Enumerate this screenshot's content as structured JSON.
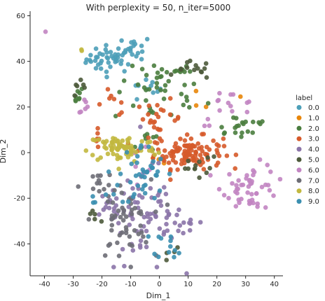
{
  "chart_data": {
    "type": "scatter",
    "title": "With perplexity = 50, n_iter=5000",
    "xlabel": "Dim_1",
    "ylabel": "Dim_2",
    "xlim": [
      -45,
      43
    ],
    "ylim": [
      -54,
      62
    ],
    "xticks": [
      -40,
      -30,
      -20,
      -10,
      0,
      10,
      20,
      30,
      40
    ],
    "yticks": [
      -40,
      -20,
      0,
      20,
      40,
      60
    ],
    "grid": false,
    "legend_position": "right",
    "legend_title": "label",
    "series": [
      {
        "name": "0.0",
        "color": "#4c9fb8",
        "clusters": [
          [
            -17,
            41,
            4.2,
            3.0,
            45
          ],
          [
            -8,
            46,
            2.5,
            2.5,
            15
          ],
          [
            -5,
            27,
            3,
            3,
            10
          ]
        ]
      },
      {
        "name": "1.0",
        "color": "#e8860a",
        "clusters": [
          [
            14,
            22,
            2,
            2,
            3
          ],
          [
            28,
            24,
            1,
            1,
            1
          ],
          [
            0,
            -2,
            2,
            2,
            3
          ]
        ]
      },
      {
        "name": "2.0",
        "color": "#4a7d3e",
        "clusters": [
          [
            0,
            25,
            8,
            6,
            35
          ],
          [
            5,
            36,
            3,
            2,
            12
          ],
          [
            -30,
            25,
            2,
            2,
            8
          ],
          [
            28,
            12,
            6,
            3,
            20
          ],
          [
            -2,
            5,
            3,
            3,
            8
          ]
        ]
      },
      {
        "name": "3.0",
        "color": "#d65a2a",
        "clusters": [
          [
            10,
            0,
            6,
            3.5,
            110
          ],
          [
            0,
            15,
            4,
            4,
            25
          ],
          [
            -16,
            22,
            3,
            3,
            8
          ],
          [
            -22,
            6,
            2,
            2,
            6
          ]
        ]
      },
      {
        "name": "4.0",
        "color": "#8b74a8",
        "clusters": [
          [
            -4,
            -28,
            6,
            12,
            60
          ],
          [
            -15,
            -25,
            5,
            4,
            25
          ],
          [
            8,
            -33,
            4,
            3,
            12
          ]
        ]
      },
      {
        "name": "5.0",
        "color": "#4d5a3b",
        "clusters": [
          [
            12,
            36,
            3,
            2,
            14
          ],
          [
            13,
            -6,
            4,
            3,
            12
          ],
          [
            -28,
            27,
            2,
            2,
            6
          ],
          [
            -22,
            -28,
            2,
            2,
            5
          ],
          [
            7,
            -42,
            2,
            2,
            4
          ]
        ]
      },
      {
        "name": "6.0",
        "color": "#c285c2",
        "clusters": [
          [
            32,
            -15,
            5,
            5,
            50
          ],
          [
            24,
            20,
            5,
            4,
            15
          ],
          [
            -27,
            20,
            3,
            2,
            6
          ],
          [
            -6,
            -2,
            3,
            3,
            8
          ],
          [
            -40,
            53,
            0.5,
            0.5,
            1
          ]
        ]
      },
      {
        "name": "7.0",
        "color": "#6d6d75",
        "clusters": [
          [
            -13,
            -30,
            5,
            9,
            55
          ],
          [
            -22,
            -15,
            3,
            3,
            10
          ]
        ]
      },
      {
        "name": "8.0",
        "color": "#c2b83f",
        "clusters": [
          [
            -13,
            2,
            6,
            3.2,
            75
          ],
          [
            -26,
            45,
            1,
            1,
            2
          ]
        ]
      },
      {
        "name": "9.0",
        "color": "#3b8fb0",
        "clusters": [
          [
            -6,
            -10,
            4,
            7,
            40
          ],
          [
            -23,
            -20,
            2,
            2,
            4
          ],
          [
            4,
            -40,
            3,
            3,
            12
          ]
        ]
      }
    ]
  }
}
